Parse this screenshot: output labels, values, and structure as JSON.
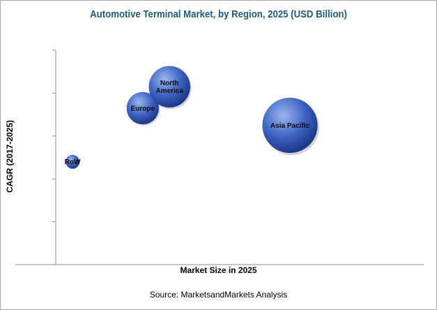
{
  "chart_data": {
    "type": "scatter",
    "title": "Automotive Terminal Market, by Region, 2025 (USD Billion)",
    "xlabel": "Market Size in 2025",
    "ylabel": "CAGR (2017-2025)",
    "xlim": [
      0,
      10
    ],
    "ylim": [
      0,
      10
    ],
    "grid": false,
    "points": [
      {
        "label": "RoW",
        "x": 0.5,
        "y": 4.8,
        "size": 0.9
      },
      {
        "label": "Europe",
        "x": 2.6,
        "y": 7.3,
        "size": 2.1
      },
      {
        "label": "North America",
        "x": 3.4,
        "y": 8.3,
        "size": 2.7
      },
      {
        "label": "Asia Pacific",
        "x": 7.0,
        "y": 6.5,
        "size": 3.6
      }
    ]
  },
  "source": "Source: MarketsandMarkets Analysis",
  "colors": {
    "bubble_light": "#7f9fe0",
    "bubble_dark": "#1e3f96",
    "title": "#1f5c7a"
  }
}
